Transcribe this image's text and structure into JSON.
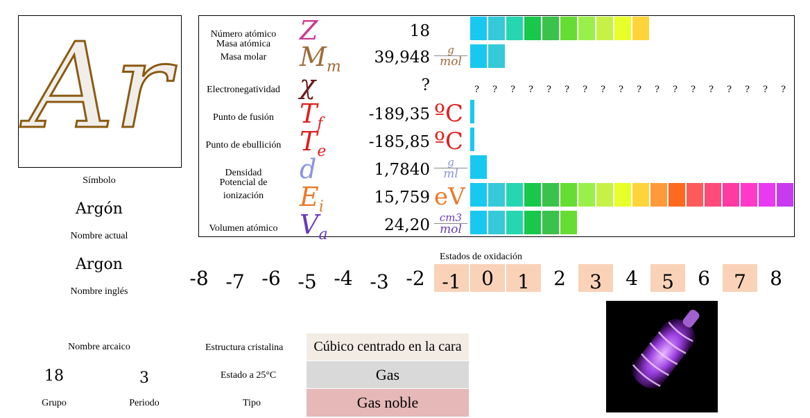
{
  "symbol": {
    "text": "Ar",
    "label": "Símbolo"
  },
  "name_current": {
    "value": "Argón",
    "label": "Nombre actual"
  },
  "name_english": {
    "value": "Argon",
    "label": "Nombre inglés"
  },
  "name_archaic": {
    "label": "Nombre arcaico",
    "value": ""
  },
  "group": {
    "value": "18",
    "label": "Grupo"
  },
  "period": {
    "value": "3",
    "label": "Periodo"
  },
  "properties": [
    {
      "label": "Número atómico",
      "symbol": "Z",
      "value": "18",
      "unit": "",
      "color": "#c83a8e",
      "bar_fill": 0.36
    },
    {
      "label": "Masa atómica\nMasa molar",
      "symbol": "Mm",
      "value": "39,948",
      "unit": "g/mol",
      "color": "#a06b3a",
      "bar_fill": 0.08
    },
    {
      "label": "Electronegatividad",
      "symbol": "χ",
      "value": "?",
      "unit": "",
      "color": "#6b1e1e",
      "bar_fill": 0
    },
    {
      "label": "Punto de fusión",
      "symbol": "Tf",
      "value": "-189,35",
      "unit": "ºC",
      "color": "#e0201e",
      "bar_fill": 0.01
    },
    {
      "label": "Punto de ebullición",
      "symbol": "Te",
      "value": "-185,85",
      "unit": "ºC",
      "color": "#e0201e",
      "bar_fill": 0.01
    },
    {
      "label": "Densidad",
      "symbol": "d",
      "value": "1,7840",
      "unit": "g/ml",
      "color": "#8a96e0",
      "bar_fill": 0.02
    },
    {
      "label": "Potencial de\nionización",
      "symbol": "Ei",
      "value": "15,759",
      "unit": "eV",
      "color": "#e87a2a",
      "bar_fill": 0.63
    },
    {
      "label": "Volumen atómico",
      "symbol": "Va",
      "value": "24,20",
      "unit": "cm3/mol",
      "color": "#6a3ab8",
      "bar_fill": 0.2
    }
  ],
  "electronegativity_placeholders": [
    "?",
    "?",
    "?",
    "?",
    "?",
    "?",
    "?",
    "?",
    "?",
    "?",
    "?",
    "?",
    "?",
    "?",
    "?",
    "?",
    "?",
    "?"
  ],
  "oxidation": {
    "title": "Estados de oxidación",
    "states": [
      "-8",
      "-7",
      "-6",
      "-5",
      "-4",
      "-3",
      "-2",
      "-1",
      "0",
      "1",
      "2",
      "3",
      "4",
      "5",
      "6",
      "7",
      "8"
    ],
    "highlighted": [
      "-1",
      "0",
      "1",
      "3",
      "5",
      "7"
    ]
  },
  "structure": {
    "label": "Estructura cristalina",
    "value": "Cúbico centrado en la cara",
    "bg": "#f3ece5"
  },
  "state": {
    "label": "Estado a 25°C",
    "value": "Gas",
    "bg": "#d9d9d9"
  },
  "type": {
    "label": "Tipo",
    "value": "Gas noble",
    "bg": "#e6b8b8"
  },
  "colors": {
    "ox_highlight": "#f9d2b8"
  }
}
